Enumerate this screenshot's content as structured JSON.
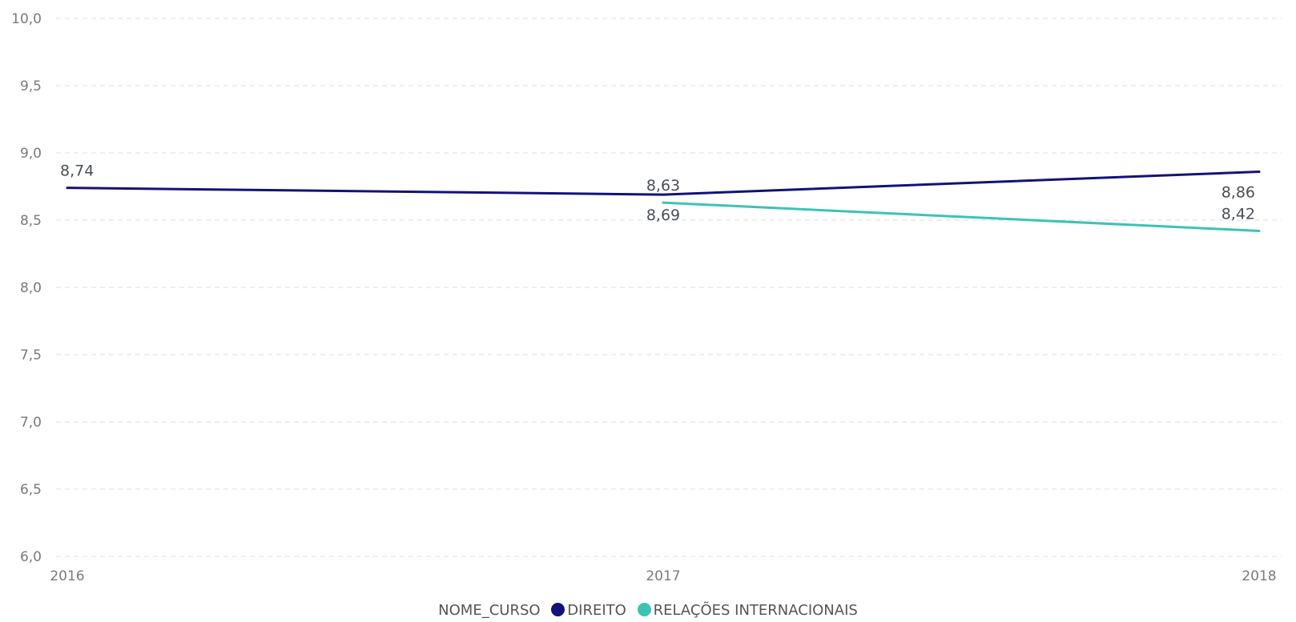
{
  "chart_data": {
    "type": "line",
    "x": [
      "2016",
      "2017",
      "2018"
    ],
    "ylim": [
      6.0,
      10.0
    ],
    "yticks": [
      "6,0",
      "6,5",
      "7,0",
      "7,5",
      "8,0",
      "8,5",
      "9,0",
      "9,5",
      "10,0"
    ],
    "grid": true,
    "legend_position": "bottom",
    "legend_title": "NOME_CURSO",
    "series": [
      {
        "name": "DIREITO",
        "color": "#12127a",
        "values": [
          8.74,
          8.69,
          8.86
        ],
        "labels": [
          "8,74",
          "8,69",
          "8,86"
        ]
      },
      {
        "name": "RELAÇÕES INTERNACIONAIS",
        "color": "#3cc3b4",
        "values": [
          null,
          8.63,
          8.42
        ],
        "labels": [
          null,
          "8,63",
          "8,42"
        ]
      }
    ]
  }
}
